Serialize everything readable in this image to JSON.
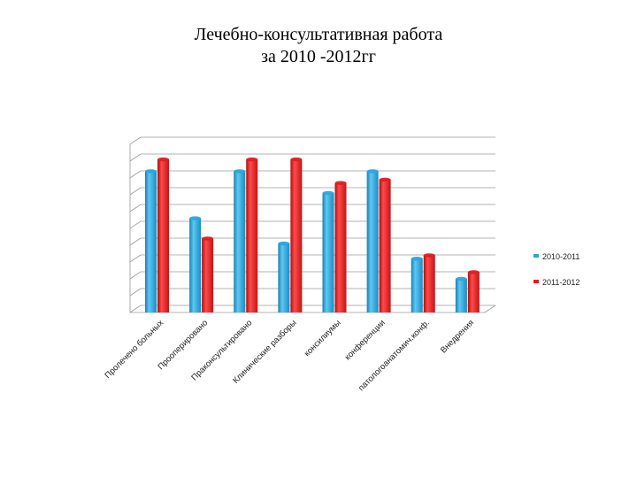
{
  "title": {
    "line1": "Лечебно-консультативная работа",
    "line2": "за 2010 -2012гг"
  },
  "colors": {
    "series1": "#2aa6dd",
    "series2": "#e01d1d",
    "grid": "#9a9a9a"
  },
  "chart_data": {
    "type": "bar",
    "title": "Лечебно-консультативная работа за 2010 -2012гг",
    "categories": [
      "Пролечено больных",
      "Прооперировано",
      "Праконсультировано",
      "Клинические разборы",
      "консилиумы",
      "конференции",
      "патологоанатомич.конф.",
      "Внедрения"
    ],
    "series": [
      {
        "name": "2010-2011",
        "values": [
          84,
          56,
          84,
          41,
          71,
          84,
          32,
          20
        ]
      },
      {
        "name": "2011-2012",
        "values": [
          91,
          44,
          91,
          91,
          77,
          79,
          34,
          24
        ]
      }
    ],
    "ylim": [
      0,
      100
    ],
    "grid": true,
    "legend_position": "right",
    "three_d": true
  }
}
